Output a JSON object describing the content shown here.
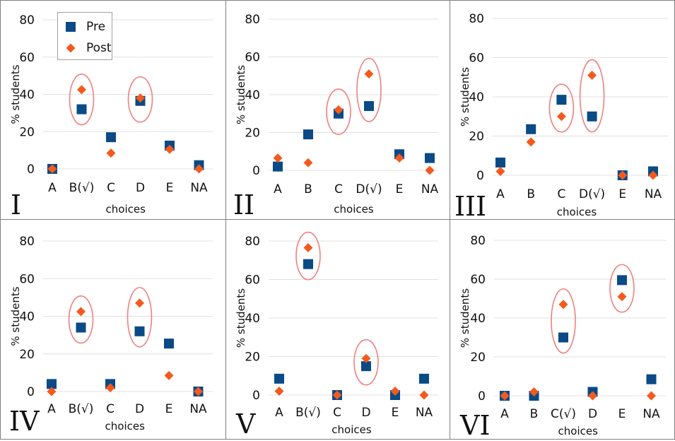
{
  "legend": {
    "pre_label": "Pre",
    "post_label": "Post"
  },
  "colors": {
    "pre": "#0a4a86",
    "post": "#f45a1e",
    "highlight": "#f08080",
    "grid": "#e0e0e0",
    "border": "#808080"
  },
  "chart_data": [
    {
      "type": "scatter",
      "panel": "I",
      "xlabel": "choices",
      "ylabel": "% students",
      "ylim": [
        0,
        80
      ],
      "yticks": [
        0,
        20,
        40,
        60,
        80
      ],
      "categories": [
        "A",
        "B(√)",
        "C",
        "D",
        "E",
        "NA"
      ],
      "series": [
        {
          "name": "Pre",
          "values": [
            0,
            32,
            17,
            36.5,
            12.5,
            2
          ]
        },
        {
          "name": "Post",
          "values": [
            0,
            42.5,
            8.5,
            38,
            10.5,
            0
          ]
        }
      ],
      "highlighted": [
        "B(√)",
        "D"
      ]
    },
    {
      "type": "scatter",
      "panel": "II",
      "xlabel": "choices",
      "ylabel": "% students",
      "ylim": [
        0,
        80
      ],
      "yticks": [
        0,
        20,
        40,
        60,
        80
      ],
      "categories": [
        "A",
        "B",
        "C",
        "D(√)",
        "E",
        "NA"
      ],
      "series": [
        {
          "name": "Pre",
          "values": [
            2,
            19,
            30,
            34,
            8.5,
            6.5
          ]
        },
        {
          "name": "Post",
          "values": [
            6.5,
            4,
            32,
            51,
            6.5,
            0
          ]
        }
      ],
      "highlighted": [
        "C",
        "D(√)"
      ]
    },
    {
      "type": "scatter",
      "panel": "III",
      "xlabel": "choices",
      "ylabel": "% students",
      "ylim": [
        0,
        80
      ],
      "yticks": [
        0,
        20,
        40,
        60,
        80
      ],
      "categories": [
        "A",
        "B",
        "C",
        "D(√)",
        "E",
        "NA"
      ],
      "series": [
        {
          "name": "Pre",
          "values": [
            6.5,
            23.5,
            38.5,
            30,
            0,
            2
          ]
        },
        {
          "name": "Post",
          "values": [
            2,
            17,
            30,
            51,
            0,
            0
          ]
        }
      ],
      "highlighted": [
        "C",
        "D(√)"
      ]
    },
    {
      "type": "scatter",
      "panel": "IV",
      "xlabel": "choices",
      "ylabel": "% students",
      "ylim": [
        0,
        80
      ],
      "yticks": [
        0,
        20,
        40,
        60,
        80
      ],
      "categories": [
        "A",
        "B(√)",
        "C",
        "D",
        "E",
        "NA"
      ],
      "series": [
        {
          "name": "Pre",
          "values": [
            4,
            34,
            4,
            32,
            25.5,
            0
          ]
        },
        {
          "name": "Post",
          "values": [
            0,
            42.5,
            2,
            47,
            8.5,
            0
          ]
        }
      ],
      "highlighted": [
        "B(√)",
        "D"
      ]
    },
    {
      "type": "scatter",
      "panel": "V",
      "xlabel": "choices",
      "ylabel": "% students",
      "ylim": [
        0,
        80
      ],
      "yticks": [
        0,
        20,
        40,
        60,
        80
      ],
      "categories": [
        "A",
        "B(√)",
        "C",
        "D",
        "E",
        "NA"
      ],
      "series": [
        {
          "name": "Pre",
          "values": [
            8.5,
            68,
            0,
            15,
            0,
            8.5
          ]
        },
        {
          "name": "Post",
          "values": [
            2,
            76.5,
            0,
            19,
            2,
            0
          ]
        }
      ],
      "highlighted": [
        "B(√)",
        "D"
      ]
    },
    {
      "type": "scatter",
      "panel": "VI",
      "xlabel": "choices",
      "ylabel": "% students",
      "ylim": [
        0,
        80
      ],
      "yticks": [
        0,
        20,
        40,
        60,
        80
      ],
      "categories": [
        "A",
        "B",
        "C(√)",
        "D",
        "E",
        "NA"
      ],
      "series": [
        {
          "name": "Pre",
          "values": [
            0,
            0,
            30,
            2,
            59.5,
            8.5
          ]
        },
        {
          "name": "Post",
          "values": [
            0,
            2,
            47,
            0,
            51,
            0
          ]
        }
      ],
      "highlighted": [
        "C(√)",
        "E"
      ]
    }
  ]
}
